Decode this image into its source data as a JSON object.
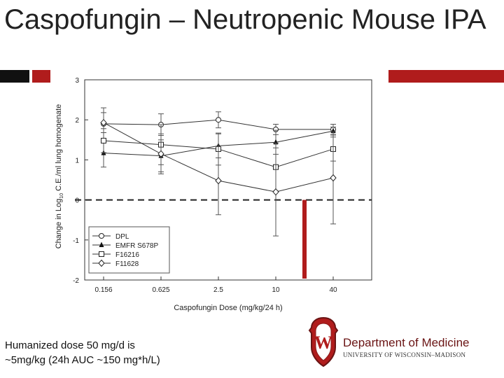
{
  "slide": {
    "title": "Caspofungin – Neutropenic Mouse IPA",
    "note_line1": "Humanized dose 50 mg/d is",
    "note_line2": "~5mg/kg (24h AUC ~150 mg*h/L)",
    "colors": {
      "accent_red": "#b01c1c",
      "accent_black": "#111111"
    }
  },
  "logo": {
    "department": "Department of Medicine",
    "university": "UNIVERSITY OF WISCONSIN–MADISON",
    "crest_letter": "W"
  },
  "chart_data": {
    "type": "line",
    "xlabel": "Caspofungin Dose (mg/kg/24 h)",
    "ylabel_prefix": "Change in Log",
    "ylabel_sub": "10",
    "ylabel_suffix": " C.E./ml lung homogenate",
    "categories": [
      "0.156",
      "0.625",
      "2.5",
      "10",
      "40"
    ],
    "ylim": [
      -2,
      3
    ],
    "yticks": [
      "3",
      "2",
      "1",
      "0",
      "-1",
      "-2"
    ],
    "reference_line_y": 0,
    "humanized_dose_marker_x": 3.5,
    "legend_position": "bottom-left",
    "series": [
      {
        "name": "DPL",
        "marker": "circle",
        "values": [
          1.9,
          1.88,
          2.0,
          1.76,
          1.76
        ],
        "err": [
          0.4,
          0.27,
          0.2,
          0.13,
          0.13
        ]
      },
      {
        "name": "EMFR S678P",
        "marker": "triangle",
        "values": [
          1.17,
          1.1,
          1.35,
          1.44,
          1.72
        ],
        "err": [
          0.35,
          0.4,
          0.3,
          0.3,
          0.1
        ]
      },
      {
        "name": "F16216",
        "marker": "square",
        "values": [
          1.48,
          1.38,
          1.27,
          0.82,
          1.27
        ],
        "err": [
          0.3,
          0.5,
          0.4,
          0.6,
          0.3
        ]
      },
      {
        "name": "F11628",
        "marker": "diamond",
        "values": [
          1.93,
          1.15,
          0.48,
          0.2,
          0.55
        ],
        "err": [
          0.25,
          0.5,
          0.85,
          1.1,
          1.15
        ]
      }
    ]
  }
}
